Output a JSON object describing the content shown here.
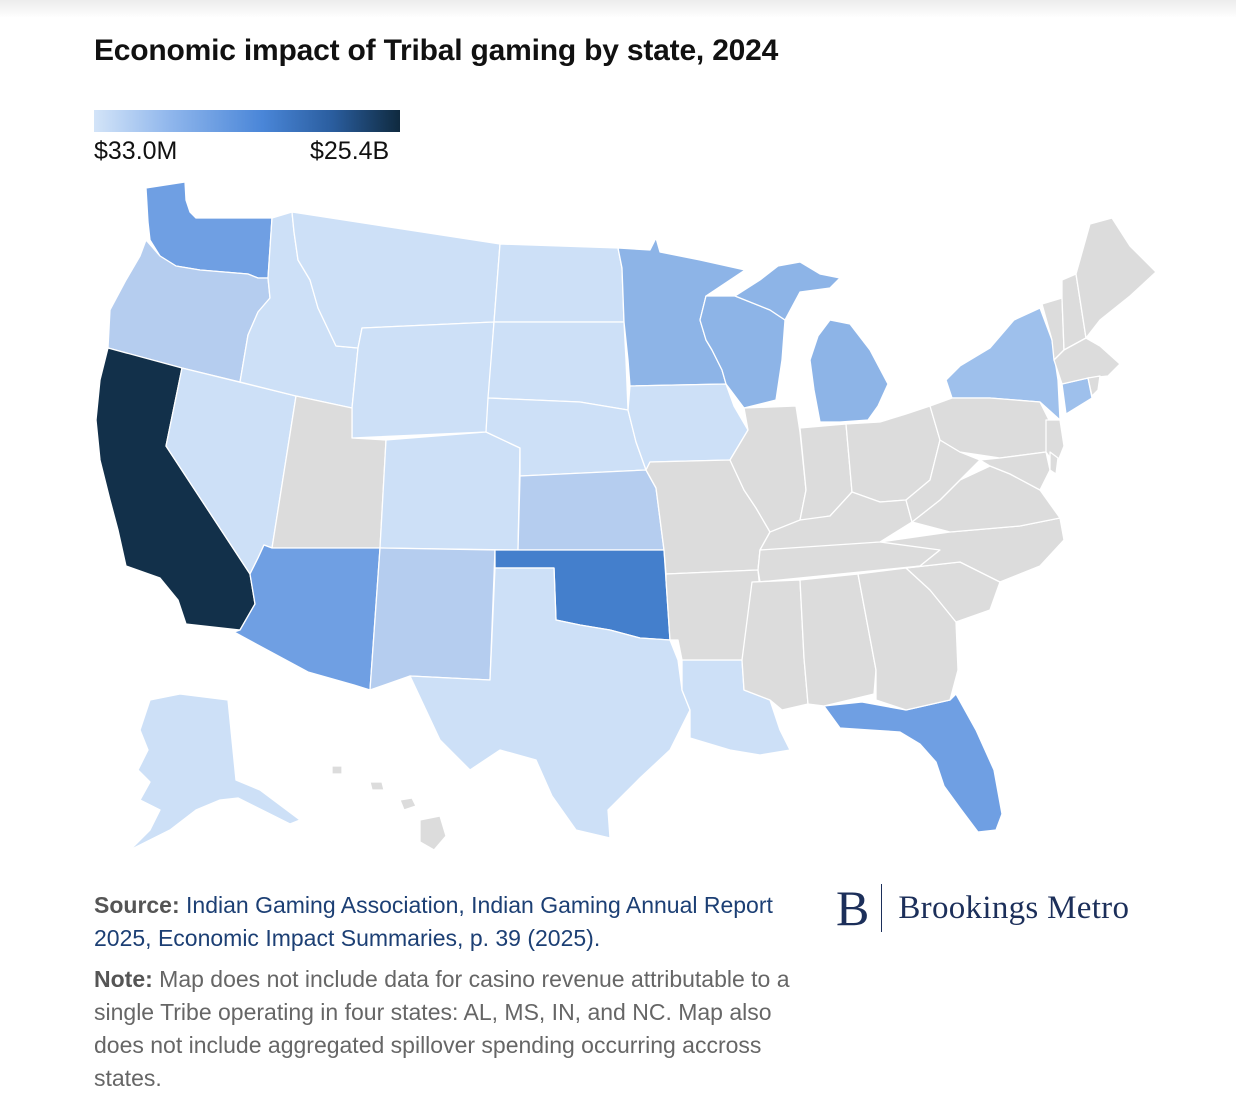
{
  "title": "Economic impact of Tribal gaming by state, 2024",
  "legend": {
    "min_label": "$33.0M",
    "max_label": "$25.4B",
    "colors": [
      "#d3e4f8",
      "#8fb6ec",
      "#4a86d8",
      "#2a5d9e",
      "#0f2a3f"
    ]
  },
  "map_colors": {
    "no_data": "#dcdcdc",
    "lightest": "#cde0f7",
    "light": "#b5cdef",
    "medium_light": "#9ec0ec",
    "medium": "#8db4e7",
    "medium_dark": "#6f9fe3",
    "dark": "#447fcc",
    "darkest": "#12304a"
  },
  "source": {
    "label": "Source:",
    "text": "Indian Gaming Association, Indian Gaming Annual Report 2025, Economic Impact Summaries, p. 39 (2025)."
  },
  "note": {
    "label": "Note:",
    "text": "Map does not include data for casino revenue attributable to a single Tribe operating in four states: AL, MS, IN, and NC. Map also does not include aggregated spillover spending occurring accross states."
  },
  "logo": {
    "mark": "B",
    "text": "Brookings Metro"
  }
}
